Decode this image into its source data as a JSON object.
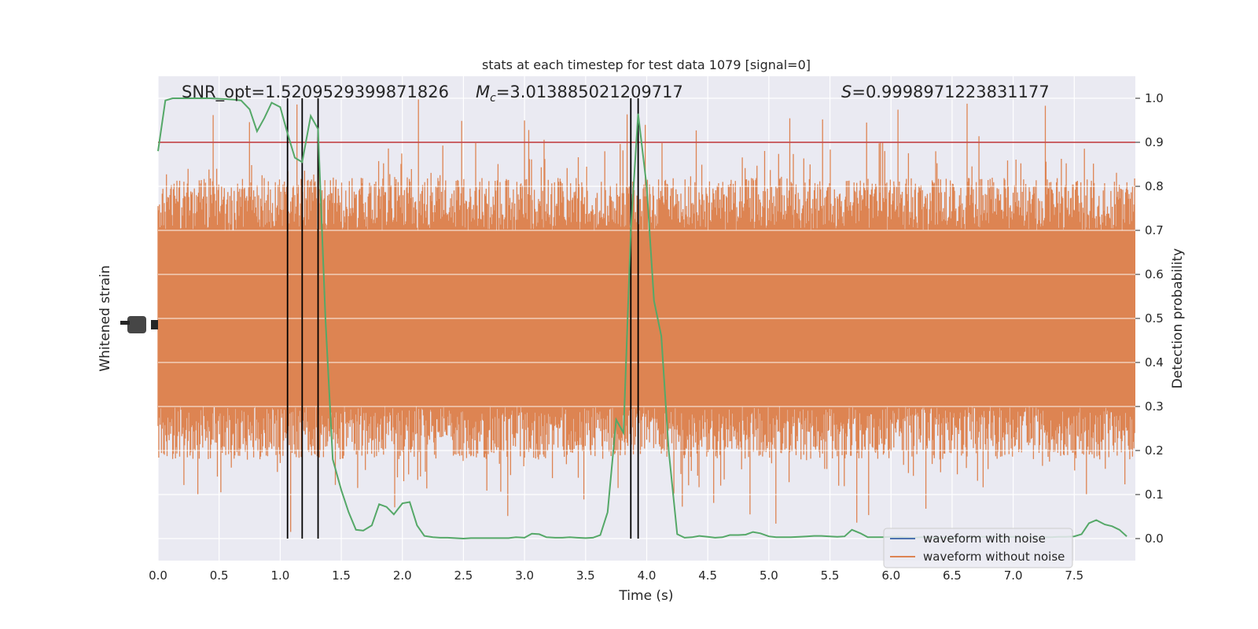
{
  "chart_data": {
    "type": "line",
    "title": "stats at each timestep for test data 1079 [signal=0]",
    "xlabel": "Time (s)",
    "ylabel_left": "Whitened strain",
    "ylabel_right": "Detection probability",
    "xlim": [
      0.0,
      8.0
    ],
    "ylim_right": [
      -0.05,
      1.05
    ],
    "grid": true,
    "x_ticks": [
      "0.0",
      "0.5",
      "1.0",
      "1.5",
      "2.0",
      "2.5",
      "3.0",
      "3.5",
      "4.0",
      "4.5",
      "5.0",
      "5.5",
      "6.0",
      "6.5",
      "7.0",
      "7.5"
    ],
    "y_right_ticks": [
      "0.0",
      "0.1",
      "0.2",
      "0.3",
      "0.4",
      "0.5",
      "0.6",
      "0.7",
      "0.8",
      "0.9",
      "1.0"
    ],
    "annotations": {
      "snr": "SNR_opt=1.5209529399871826",
      "mc_symbol": "M",
      "mc_sub": "c",
      "mc_value": "=3.013885021209717",
      "s_symbol": "S",
      "s_value": "=0.9998971223831177"
    },
    "threshold": {
      "y": 0.9,
      "color": "#c44e52"
    },
    "vertical_lines_x": [
      1.06,
      1.18,
      1.31,
      3.87,
      3.93
    ],
    "noise_band": {
      "color": "#dd8452",
      "typical_low": 0.3,
      "typical_high": 0.7,
      "min": 0.01,
      "max": 1.0
    },
    "series": [
      {
        "name": "waveform with noise",
        "color": "#4c72b0",
        "values": []
      },
      {
        "name": "waveform without noise",
        "color": "#dd8452",
        "values": []
      },
      {
        "color": "#55a868",
        "x": [
          0.0,
          0.06,
          0.12,
          0.18,
          0.25,
          0.31,
          0.37,
          0.43,
          0.5,
          0.56,
          0.62,
          0.68,
          0.75,
          0.81,
          0.87,
          0.93,
          1.0,
          1.06,
          1.12,
          1.18,
          1.25,
          1.31,
          1.37,
          1.43,
          1.5,
          1.56,
          1.62,
          1.68,
          1.75,
          1.81,
          1.87,
          1.93,
          2.0,
          2.06,
          2.12,
          2.18,
          2.25,
          2.31,
          2.37,
          2.43,
          2.5,
          2.56,
          2.62,
          2.68,
          2.75,
          2.81,
          2.87,
          2.93,
          3.0,
          3.06,
          3.12,
          3.18,
          3.25,
          3.31,
          3.37,
          3.43,
          3.5,
          3.56,
          3.62,
          3.68,
          3.75,
          3.81,
          3.87,
          3.93,
          4.0,
          4.06,
          4.12,
          4.18,
          4.25,
          4.31,
          4.37,
          4.43,
          4.5,
          4.56,
          4.62,
          4.68,
          4.75,
          4.81,
          4.87,
          4.93,
          5.0,
          5.06,
          5.12,
          5.18,
          5.25,
          5.31,
          5.37,
          5.43,
          5.5,
          5.56,
          5.62,
          5.68,
          5.75,
          5.81,
          5.87,
          5.93,
          6.0,
          6.06,
          6.12,
          6.18,
          6.25,
          6.31,
          6.37,
          6.43,
          6.5,
          6.56,
          6.62,
          6.68,
          6.75,
          6.81,
          6.87,
          6.93,
          7.0,
          7.06,
          7.12,
          7.18,
          7.25,
          7.31,
          7.37,
          7.43,
          7.5,
          7.56,
          7.62,
          7.68,
          7.75,
          7.81,
          7.87,
          7.93
        ],
        "values": [
          0.88,
          0.995,
          1.0,
          1.0,
          1.0,
          1.0,
          1.0,
          1.0,
          0.999,
          0.998,
          0.997,
          0.995,
          0.975,
          0.925,
          0.955,
          0.99,
          0.98,
          0.92,
          0.865,
          0.855,
          0.96,
          0.93,
          0.5,
          0.18,
          0.11,
          0.06,
          0.02,
          0.018,
          0.03,
          0.078,
          0.072,
          0.055,
          0.08,
          0.083,
          0.03,
          0.006,
          0.003,
          0.002,
          0.002,
          0.001,
          0.0,
          0.001,
          0.001,
          0.001,
          0.001,
          0.001,
          0.001,
          0.003,
          0.002,
          0.011,
          0.01,
          0.003,
          0.002,
          0.002,
          0.003,
          0.002,
          0.001,
          0.002,
          0.008,
          0.06,
          0.27,
          0.24,
          0.7,
          0.965,
          0.8,
          0.54,
          0.46,
          0.2,
          0.01,
          0.002,
          0.003,
          0.006,
          0.004,
          0.002,
          0.003,
          0.008,
          0.008,
          0.009,
          0.015,
          0.012,
          0.005,
          0.003,
          0.003,
          0.003,
          0.004,
          0.005,
          0.006,
          0.006,
          0.005,
          0.004,
          0.005,
          0.02,
          0.012,
          0.003,
          0.003,
          0.003,
          0.004,
          0.004,
          0.003,
          0.002,
          0.003,
          0.003,
          0.002,
          0.002,
          0.002,
          0.003,
          0.003,
          0.003,
          0.004,
          0.004,
          0.003,
          0.003,
          0.004,
          0.004,
          0.003,
          0.003,
          0.003,
          0.003,
          0.004,
          0.004,
          0.005,
          0.01,
          0.035,
          0.042,
          0.032,
          0.028,
          0.02,
          0.005
        ]
      }
    ]
  }
}
